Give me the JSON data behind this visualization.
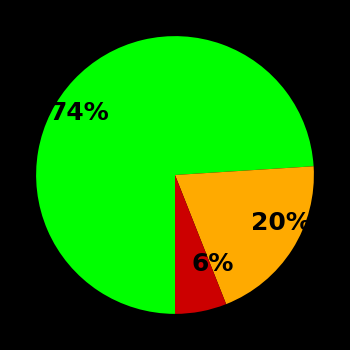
{
  "slices": [
    74,
    20,
    6
  ],
  "labels": [
    "74%",
    "20%",
    "6%"
  ],
  "colors": [
    "#00ff00",
    "#ffaa00",
    "#cc0000"
  ],
  "startangle": -90,
  "counterclock": false,
  "background_color": "#000000",
  "label_fontsize": 18,
  "label_fontweight": "bold",
  "labeldistance": 0.65
}
